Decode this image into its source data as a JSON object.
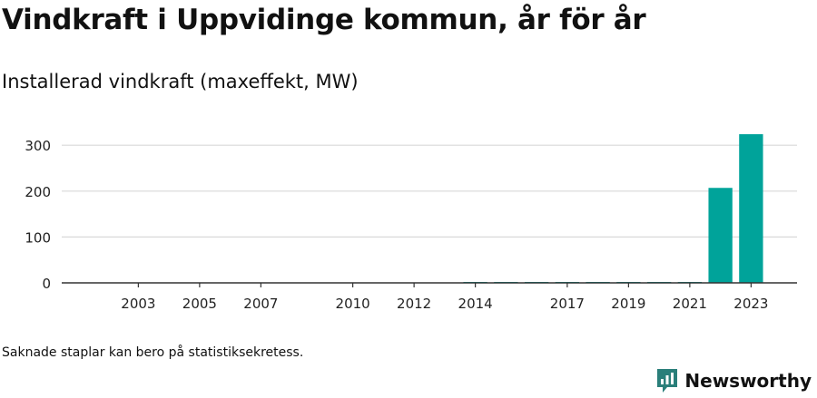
{
  "header": {
    "title": "Vindkraft i Uppvidinge kommun, år för år",
    "subtitle": "Installerad vindkraft (maxeffekt, MW)"
  },
  "footer": {
    "note": "Saknade staplar kan bero på statistiksekretess.",
    "brand": "Newsworthy"
  },
  "colors": {
    "bar": "#00a39a",
    "grid": "#d9d9d9",
    "axis": "#333333",
    "brand": "#2a7f7a"
  },
  "icons": {
    "brand_logo": "bar-chart-speech-bubble-icon"
  },
  "chart_data": {
    "type": "bar",
    "title": "Installerad vindkraft (maxeffekt, MW)",
    "xlabel": "",
    "ylabel": "",
    "x_range": [
      2000.5,
      2024.5
    ],
    "ylim": [
      0,
      330
    ],
    "yticks": [
      0,
      100,
      200,
      300
    ],
    "xticks": [
      2003,
      2005,
      2007,
      2010,
      2012,
      2014,
      2017,
      2019,
      2021,
      2023
    ],
    "grid": "horizontal",
    "categories": [
      2014,
      2015,
      2016,
      2017,
      2018,
      2019,
      2020,
      2021,
      2022,
      2023
    ],
    "values": [
      2,
      2,
      2,
      2,
      2,
      2,
      2,
      2,
      207,
      324
    ]
  }
}
